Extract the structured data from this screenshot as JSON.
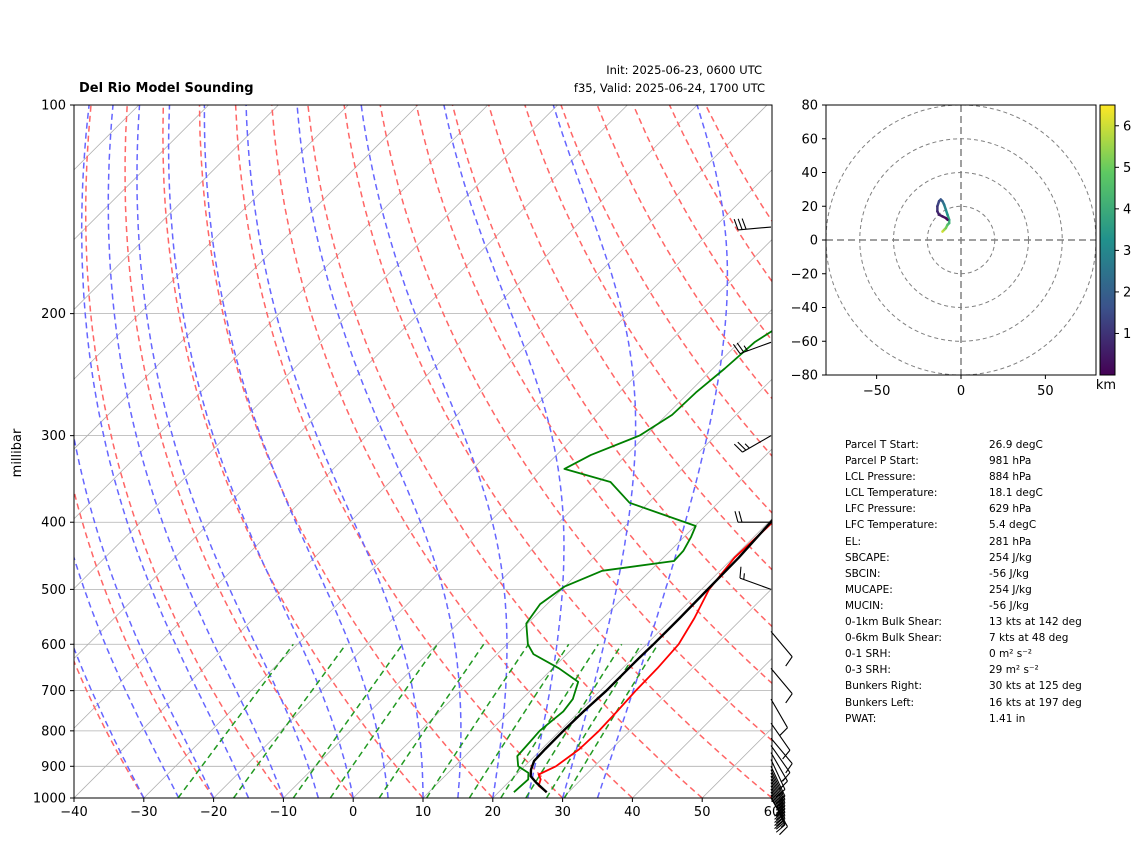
{
  "header": {
    "title": "Del Rio Model Sounding",
    "init": "Init: 2025-06-23, 0600 UTC",
    "valid": "f35, Valid: 2025-06-24, 1700 UTC"
  },
  "colors": {
    "temperature": "#ff0000",
    "dewpoint": "#008000",
    "parcel": "#000000",
    "dry_adiabat": "#ff6666",
    "moist_adiabat": "#6666ff",
    "mixing_ratio": "#229922",
    "isotherm": "#b0b0b0",
    "hodo_grid": "#808080",
    "dgz": "#7733bb"
  },
  "chart_data": [
    {
      "type": "line",
      "subtype": "skew-t log-p",
      "title": "Del Rio Model Sounding",
      "xlabel": "",
      "ylabel": "millibar",
      "xlim": [
        -40,
        60
      ],
      "ylim": [
        1000,
        100
      ],
      "y_scale": "log",
      "x_ticks": [
        -40,
        -30,
        -20,
        -10,
        0,
        10,
        20,
        30,
        40,
        50,
        60
      ],
      "y_ticks": [
        100,
        200,
        300,
        400,
        500,
        600,
        700,
        800,
        900,
        1000
      ],
      "grid": true,
      "series": [
        {
          "id": "temperature",
          "points": [
            [
              981,
              26.9
            ],
            [
              960,
              24.8
            ],
            [
              940,
              24.2
            ],
            [
              925,
              23.2
            ],
            [
              900,
              24.5
            ],
            [
              850,
              25.4
            ],
            [
              800,
              25.6
            ],
            [
              750,
              25.4
            ],
            [
              700,
              25.1
            ],
            [
              650,
              25.0
            ],
            [
              600,
              24.6
            ],
            [
              550,
              23.1
            ],
            [
              500,
              21.1
            ],
            [
              450,
              20.2
            ],
            [
              400,
              20.6
            ],
            [
              350,
              20.9
            ],
            [
              300,
              19.5
            ],
            [
              250,
              18.7
            ],
            [
              220,
              17.1
            ],
            [
              200,
              16.7
            ],
            [
              180,
              16.2
            ],
            [
              165,
              18.4
            ],
            [
              150,
              21.6
            ],
            [
              140,
              23.9
            ],
            [
              130,
              26.1
            ],
            [
              120,
              27.9
            ],
            [
              110,
              28.9
            ],
            [
              100,
              29.9
            ]
          ]
        },
        {
          "id": "dewpoint",
          "points": [
            [
              981,
              22.2
            ],
            [
              940,
              22.4
            ],
            [
              920,
              21.5
            ],
            [
              900,
              19.1
            ],
            [
              870,
              17.5
            ],
            [
              830,
              17.3
            ],
            [
              800,
              17.1
            ],
            [
              750,
              17.7
            ],
            [
              720,
              17.3
            ],
            [
              680,
              15.6
            ],
            [
              650,
              10.9
            ],
            [
              620,
              5.2
            ],
            [
              600,
              3.0
            ],
            [
              560,
              -0.2
            ],
            [
              525,
              -1.0
            ],
            [
              495,
              0.0
            ],
            [
              470,
              3.1
            ],
            [
              455,
              12.0
            ],
            [
              440,
              11.9
            ],
            [
              420,
              11.0
            ],
            [
              405,
              10.1
            ],
            [
              375,
              -2.7
            ],
            [
              350,
              -8.4
            ],
            [
              335,
              -16.9
            ],
            [
              320,
              -15.1
            ],
            [
              300,
              -10.9
            ],
            [
              280,
              -9.2
            ],
            [
              260,
              -9.0
            ],
            [
              240,
              -8.3
            ],
            [
              220,
              -7.8
            ],
            [
              200,
              -5.5
            ],
            [
              190,
              -5.5
            ],
            [
              175,
              -6.0
            ],
            [
              160,
              -6.6
            ],
            [
              150,
              -7.2
            ],
            [
              135,
              -7.7
            ],
            [
              115,
              -8.3
            ],
            [
              100,
              -8.5
            ]
          ]
        },
        {
          "id": "parcel",
          "points": [
            [
              981,
              26.9
            ],
            [
              950,
              24.0
            ],
            [
              930,
              22.3
            ],
            [
              910,
              21.4
            ],
            [
              884,
              20.6
            ],
            [
              850,
              20.5
            ],
            [
              800,
              20.5
            ],
            [
              750,
              20.6
            ],
            [
              700,
              20.9
            ],
            [
              629,
              20.9
            ],
            [
              600,
              21.0
            ],
            [
              550,
              21.0
            ],
            [
              500,
              20.9
            ],
            [
              450,
              20.8
            ],
            [
              400,
              20.3
            ],
            [
              350,
              19.2
            ],
            [
              300,
              18.0
            ],
            [
              281,
              17.5
            ],
            [
              250,
              14.4
            ],
            [
              220,
              10.4
            ],
            [
              200,
              8.3
            ],
            [
              180,
              5.7
            ],
            [
              160,
              3.5
            ],
            [
              140,
              2.2
            ],
            [
              120,
              1.0
            ],
            [
              100,
              -0.8
            ]
          ]
        }
      ],
      "reference_lines": {
        "dry_adiabats_theta_c": [
          -30,
          -20,
          -10,
          0,
          10,
          20,
          30,
          40,
          50,
          60,
          70,
          80,
          90,
          100,
          110,
          120,
          130,
          140,
          150,
          160
        ],
        "moist_adiabats_base_c": [
          -30,
          -25,
          -20,
          -15,
          -10,
          -5,
          0,
          5,
          10,
          15,
          20,
          25,
          30,
          35
        ],
        "mixing_ratios_gkg": [
          0.5,
          1,
          2,
          3,
          5,
          8,
          12,
          16,
          20,
          24,
          28
        ],
        "isotherm_spacing_c": 10
      },
      "wind_barbs": [
        {
          "p": 1000,
          "speed_kt": 15,
          "dir_deg": 150
        },
        {
          "p": 990,
          "speed_kt": 20,
          "dir_deg": 155
        },
        {
          "p": 980,
          "speed_kt": 20,
          "dir_deg": 155
        },
        {
          "p": 970,
          "speed_kt": 20,
          "dir_deg": 155
        },
        {
          "p": 960,
          "speed_kt": 20,
          "dir_deg": 155
        },
        {
          "p": 950,
          "speed_kt": 20,
          "dir_deg": 155
        },
        {
          "p": 940,
          "speed_kt": 15,
          "dir_deg": 155
        },
        {
          "p": 930,
          "speed_kt": 15,
          "dir_deg": 155
        },
        {
          "p": 920,
          "speed_kt": 15,
          "dir_deg": 155
        },
        {
          "p": 910,
          "speed_kt": 15,
          "dir_deg": 155
        },
        {
          "p": 900,
          "speed_kt": 15,
          "dir_deg": 155
        },
        {
          "p": 880,
          "speed_kt": 15,
          "dir_deg": 155
        },
        {
          "p": 860,
          "speed_kt": 15,
          "dir_deg": 150
        },
        {
          "p": 840,
          "speed_kt": 10,
          "dir_deg": 145
        },
        {
          "p": 820,
          "speed_kt": 10,
          "dir_deg": 140
        },
        {
          "p": 780,
          "speed_kt": 10,
          "dir_deg": 145
        },
        {
          "p": 720,
          "speed_kt": 10,
          "dir_deg": 150
        },
        {
          "p": 650,
          "speed_kt": 10,
          "dir_deg": 140
        },
        {
          "p": 575,
          "speed_kt": 10,
          "dir_deg": 140
        },
        {
          "p": 500,
          "speed_kt": 15,
          "dir_deg": 290
        },
        {
          "p": 400,
          "speed_kt": 20,
          "dir_deg": 270
        },
        {
          "p": 300,
          "speed_kt": 25,
          "dir_deg": 240
        },
        {
          "p": 220,
          "speed_kt": 25,
          "dir_deg": 250
        },
        {
          "p": 150,
          "speed_kt": 30,
          "dir_deg": 265
        }
      ]
    },
    {
      "type": "line",
      "subtype": "hodograph",
      "xlabel": "",
      "ylabel": "",
      "xlim": [
        -80,
        80
      ],
      "ylim": [
        -80,
        80
      ],
      "x_ticks": [
        -50,
        0,
        50
      ],
      "y_ticks": [
        -80,
        -60,
        -40,
        -20,
        0,
        20,
        40,
        60,
        80
      ],
      "rings_kt": [
        20,
        40,
        60,
        80
      ],
      "colorbar": {
        "label": "km",
        "min": 0,
        "max": 6.5,
        "ticks": [
          1,
          2,
          3,
          4,
          5,
          6
        ]
      },
      "points": [
        {
          "u": -11,
          "v": 5,
          "h": 6.2
        },
        {
          "u": -10,
          "v": 6,
          "h": 5.8
        },
        {
          "u": -9,
          "v": 7,
          "h": 5.3
        },
        {
          "u": -8,
          "v": 9,
          "h": 4.8
        },
        {
          "u": -7,
          "v": 10,
          "h": 4.3
        },
        {
          "u": -7,
          "v": 12,
          "h": 3.9
        },
        {
          "u": -8,
          "v": 15,
          "h": 3.5
        },
        {
          "u": -9,
          "v": 18,
          "h": 3.1
        },
        {
          "u": -10,
          "v": 21,
          "h": 2.7
        },
        {
          "u": -11,
          "v": 23,
          "h": 2.3
        },
        {
          "u": -12,
          "v": 24,
          "h": 1.9
        },
        {
          "u": -13,
          "v": 23,
          "h": 1.5
        },
        {
          "u": -14,
          "v": 20,
          "h": 1.2
        },
        {
          "u": -14,
          "v": 17,
          "h": 0.9
        },
        {
          "u": -13,
          "v": 15,
          "h": 0.6
        },
        {
          "u": -11,
          "v": 14,
          "h": 0.4
        },
        {
          "u": -9,
          "v": 13,
          "h": 0.2
        },
        {
          "u": -8,
          "v": 12,
          "h": 0.05
        }
      ]
    }
  ],
  "params": [
    {
      "label": "Parcel T Start:",
      "value": "26.9 degC"
    },
    {
      "label": "Parcel P Start:",
      "value": "981 hPa"
    },
    {
      "label": "LCL Pressure:",
      "value": "884 hPa"
    },
    {
      "label": "LCL Temperature:",
      "value": "18.1 degC"
    },
    {
      "label": "LFC Pressure:",
      "value": "629 hPa"
    },
    {
      "label": "LFC Temperature:",
      "value": "5.4 degC"
    },
    {
      "label": "EL:",
      "value": "281 hPa"
    },
    {
      "label": "SBCAPE:",
      "value": "254 J/kg"
    },
    {
      "label": "SBCIN:",
      "value": "-56 J/kg"
    },
    {
      "label": "MUCAPE:",
      "value": "254 J/kg"
    },
    {
      "label": "MUCIN:",
      "value": "-56 J/kg"
    },
    {
      "label": "0-1km Bulk Shear:",
      "value": "13 kts at 142 deg"
    },
    {
      "label": "0-6km Bulk Shear:",
      "value": "7 kts at 48 deg"
    },
    {
      "label": "0-1 SRH:",
      "value": "0 m² s⁻²"
    },
    {
      "label": "0-3 SRH:",
      "value": "29 m² s⁻²"
    },
    {
      "label": "Bunkers Right:",
      "value": "30 kts at 125 deg"
    },
    {
      "label": "Bunkers Left:",
      "value": "16 kts at 197 deg"
    },
    {
      "label": "PWAT:",
      "value": "1.41 in"
    }
  ]
}
